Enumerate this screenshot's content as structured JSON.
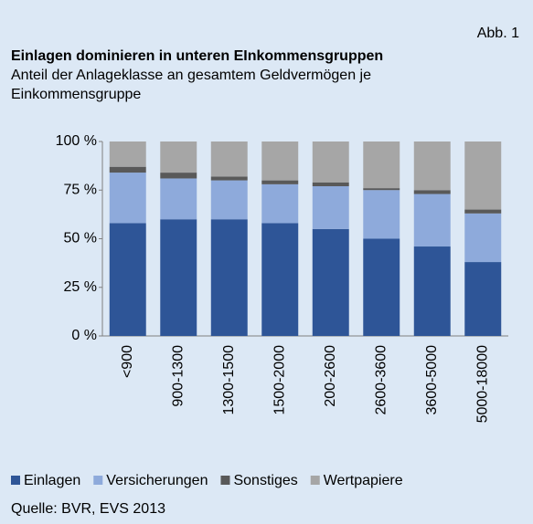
{
  "corner_label": "Abb. 1",
  "source": "Quelle: BVR, EVS 2013",
  "chart_data": {
    "type": "stacked_bar",
    "title": "Einlagen dominieren in unteren EInkommensgruppen",
    "subtitle": [
      "Anteil der Anlageklasse an gesamtem Geldvermögen je",
      "Einkommensgruppe"
    ],
    "categories": [
      "<900",
      "900-1300",
      "1300-1500",
      "1500-2000",
      "200-2600",
      "2600-3600",
      "3600-5000",
      "5000-18000"
    ],
    "series": [
      {
        "name": "Einlagen",
        "color": "#2e5597",
        "values": [
          58,
          60,
          60,
          58,
          55,
          50,
          46,
          38
        ]
      },
      {
        "name": "Versicherungen",
        "color": "#8eaadb",
        "values": [
          26,
          21,
          20,
          20,
          22,
          25,
          27,
          25
        ]
      },
      {
        "name": "Sonstiges",
        "color": "#595959",
        "values": [
          3,
          3,
          2,
          2,
          2,
          1,
          2,
          2
        ]
      },
      {
        "name": "Wertpapiere",
        "color": "#a6a6a6",
        "values": [
          13,
          16,
          18,
          20,
          21,
          24,
          25,
          35
        ]
      }
    ],
    "ylim": [
      0,
      100
    ],
    "yticks": [
      {
        "value": 0,
        "label": "0 %"
      },
      {
        "value": 25,
        "label": "25 %"
      },
      {
        "value": 50,
        "label": "50 %"
      },
      {
        "value": 75,
        "label": "75 %"
      },
      {
        "value": 100,
        "label": "100 %"
      }
    ],
    "grid": false,
    "legend": "bottom"
  }
}
